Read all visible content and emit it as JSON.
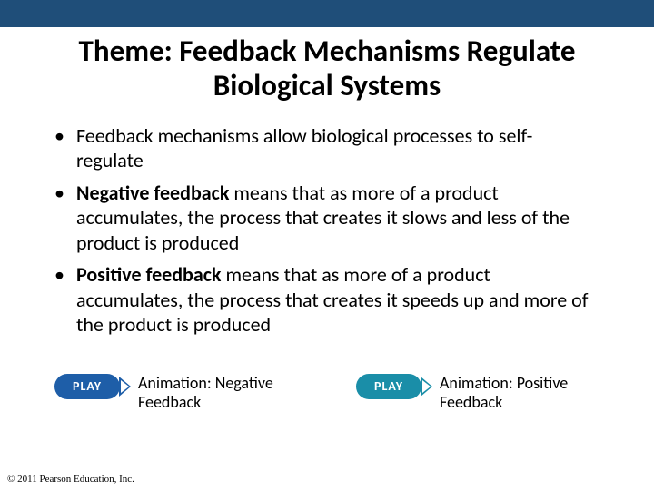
{
  "topBarColor": "#1f4e79",
  "title": "Theme: Feedback Mechanisms Regulate Biological Systems",
  "bullets": [
    {
      "preBold": "",
      "bold": "",
      "post": "Feedback mechanisms allow biological processes to self-regulate"
    },
    {
      "preBold": "",
      "bold": "Negative feedback",
      "post": " means that as more of a product accumulates, the process that creates it slows and less of the product is produced"
    },
    {
      "preBold": "",
      "bold": "Positive feedback",
      "post": " means that as more of a product accumulates, the process that creates it speeds up and more of the product is produced"
    }
  ],
  "playButtons": {
    "labelText": "PLAY",
    "pillColor1": "#1e5ea8",
    "pillColor2": "#1a8ea8",
    "item1": "Animation: Negative Feedback",
    "item2": "Animation: Positive Feedback"
  },
  "copyright": "© 2011 Pearson Education, Inc."
}
